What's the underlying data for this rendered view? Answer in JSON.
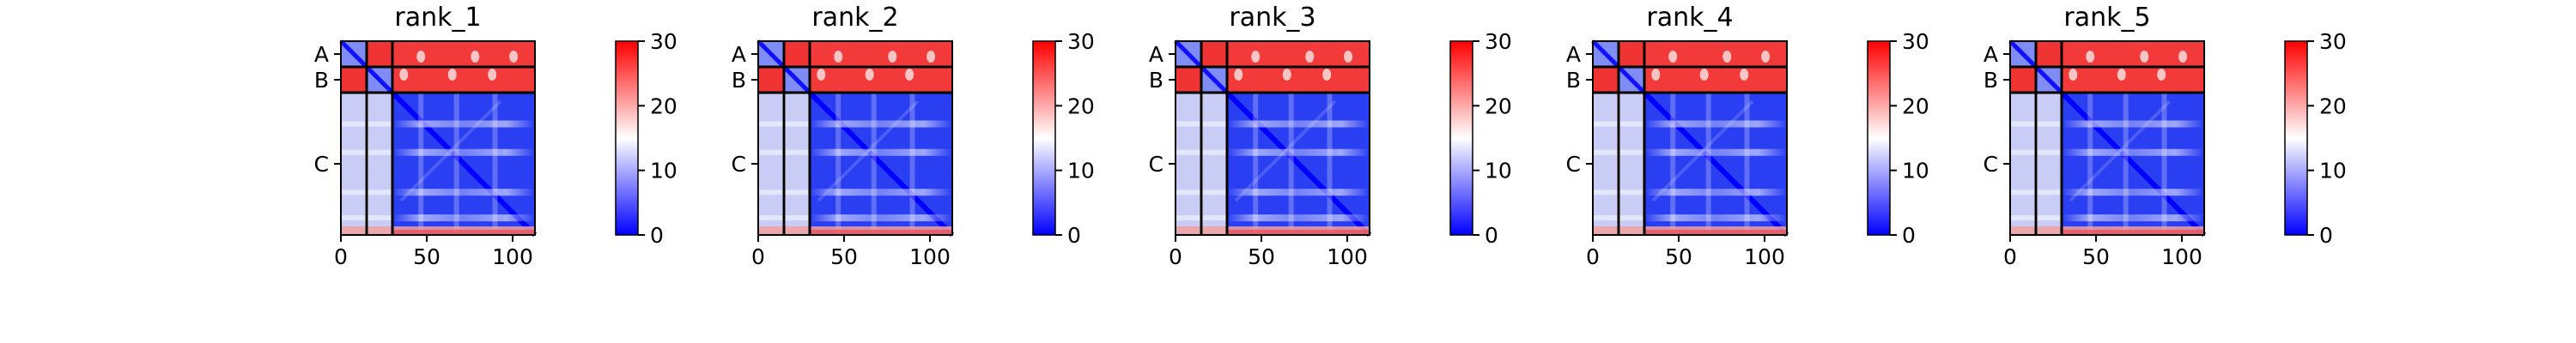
{
  "chart_data": {
    "type": "heatmap",
    "colorbar": {
      "range": [
        0,
        30
      ],
      "ticks": [
        "0",
        "10",
        "20",
        "30"
      ],
      "colors": [
        "#0000ff",
        "#ffffff",
        "#ff0000"
      ]
    },
    "x_ticks": [
      "0",
      "50",
      "100"
    ],
    "x_tick_values": [
      0,
      50,
      100
    ],
    "x_range": [
      0,
      113
    ],
    "chains": [
      {
        "name": "A",
        "length": 15
      },
      {
        "name": "B",
        "length": 15
      },
      {
        "name": "C",
        "length": 83
      }
    ],
    "panels": [
      {
        "title": "rank_1"
      },
      {
        "title": "rank_2"
      },
      {
        "title": "rank_3"
      },
      {
        "title": "rank_4"
      },
      {
        "title": "rank_5"
      }
    ]
  }
}
